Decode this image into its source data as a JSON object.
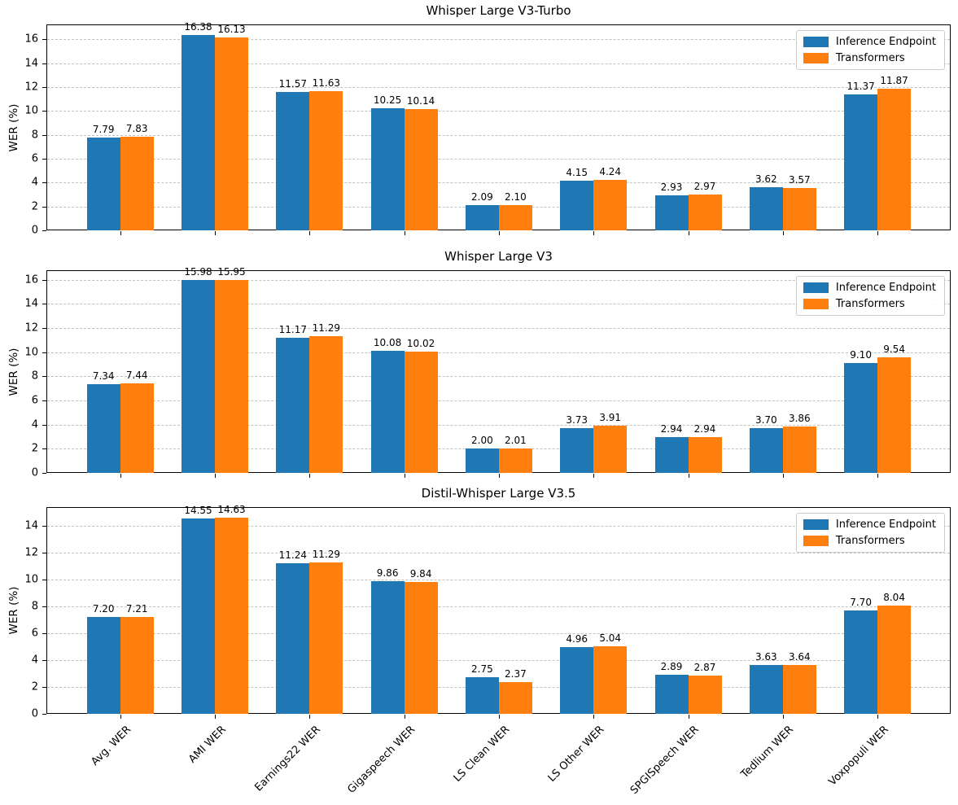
{
  "figure": {
    "background": "#ffffff",
    "series_colors": {
      "inference_endpoint": "#1f77b4",
      "transformers": "#ff7f0e"
    },
    "grid_color": "#c2c2c2",
    "spine_color": "#000000"
  },
  "chart_data": [
    {
      "type": "bar",
      "title": "Whisper Large V3-Turbo",
      "ylabel": "WER (%)",
      "grid": true,
      "legend_position": "upper right",
      "show_x_labels": false,
      "ylim": [
        0,
        17.25
      ],
      "yticks": [
        0,
        2,
        4,
        6,
        8,
        10,
        12,
        14,
        16
      ],
      "categories": [
        "Avg. WER",
        "AMI WER",
        "Earnings22 WER",
        "Gigaspeech WER",
        "LS Clean WER",
        "LS Other WER",
        "SPGISpeech WER",
        "Tedlium WER",
        "Voxpopuli WER"
      ],
      "series": [
        {
          "name": "Inference Endpoint",
          "color": "#1f77b4",
          "values": [
            7.79,
            16.38,
            11.57,
            10.25,
            2.09,
            4.15,
            2.93,
            3.62,
            11.37
          ]
        },
        {
          "name": "Transformers",
          "color": "#ff7f0e",
          "values": [
            7.83,
            16.13,
            11.63,
            10.14,
            2.1,
            4.24,
            2.97,
            3.57,
            11.87
          ]
        }
      ]
    },
    {
      "type": "bar",
      "title": "Whisper Large V3",
      "ylabel": "WER (%)",
      "grid": true,
      "legend_position": "upper right",
      "show_x_labels": false,
      "ylim": [
        0,
        16.78
      ],
      "yticks": [
        0,
        2,
        4,
        6,
        8,
        10,
        12,
        14,
        16
      ],
      "categories": [
        "Avg. WER",
        "AMI WER",
        "Earnings22 WER",
        "Gigaspeech WER",
        "LS Clean WER",
        "LS Other WER",
        "SPGISpeech WER",
        "Tedlium WER",
        "Voxpopuli WER"
      ],
      "series": [
        {
          "name": "Inference Endpoint",
          "color": "#1f77b4",
          "values": [
            7.34,
            15.98,
            11.17,
            10.08,
            2.0,
            3.73,
            2.94,
            3.7,
            9.1
          ]
        },
        {
          "name": "Transformers",
          "color": "#ff7f0e",
          "values": [
            7.44,
            15.95,
            11.29,
            10.02,
            2.01,
            3.91,
            2.94,
            3.86,
            9.54
          ]
        }
      ]
    },
    {
      "type": "bar",
      "title": "Distil-Whisper Large V3.5",
      "ylabel": "WER (%)",
      "grid": true,
      "legend_position": "upper right",
      "show_x_labels": true,
      "ylim": [
        0,
        15.4
      ],
      "yticks": [
        0,
        2,
        4,
        6,
        8,
        10,
        12,
        14
      ],
      "categories": [
        "Avg. WER",
        "AMI WER",
        "Earnings22 WER",
        "Gigaspeech WER",
        "LS Clean WER",
        "LS Other WER",
        "SPGISpeech WER",
        "Tedlium WER",
        "Voxpopuli WER"
      ],
      "series": [
        {
          "name": "Inference Endpoint",
          "color": "#1f77b4",
          "values": [
            7.2,
            14.55,
            11.24,
            9.86,
            2.75,
            4.96,
            2.89,
            3.63,
            7.7
          ]
        },
        {
          "name": "Transformers",
          "color": "#ff7f0e",
          "values": [
            7.21,
            14.63,
            11.29,
            9.84,
            2.37,
            5.04,
            2.87,
            3.64,
            8.04
          ]
        }
      ]
    }
  ]
}
